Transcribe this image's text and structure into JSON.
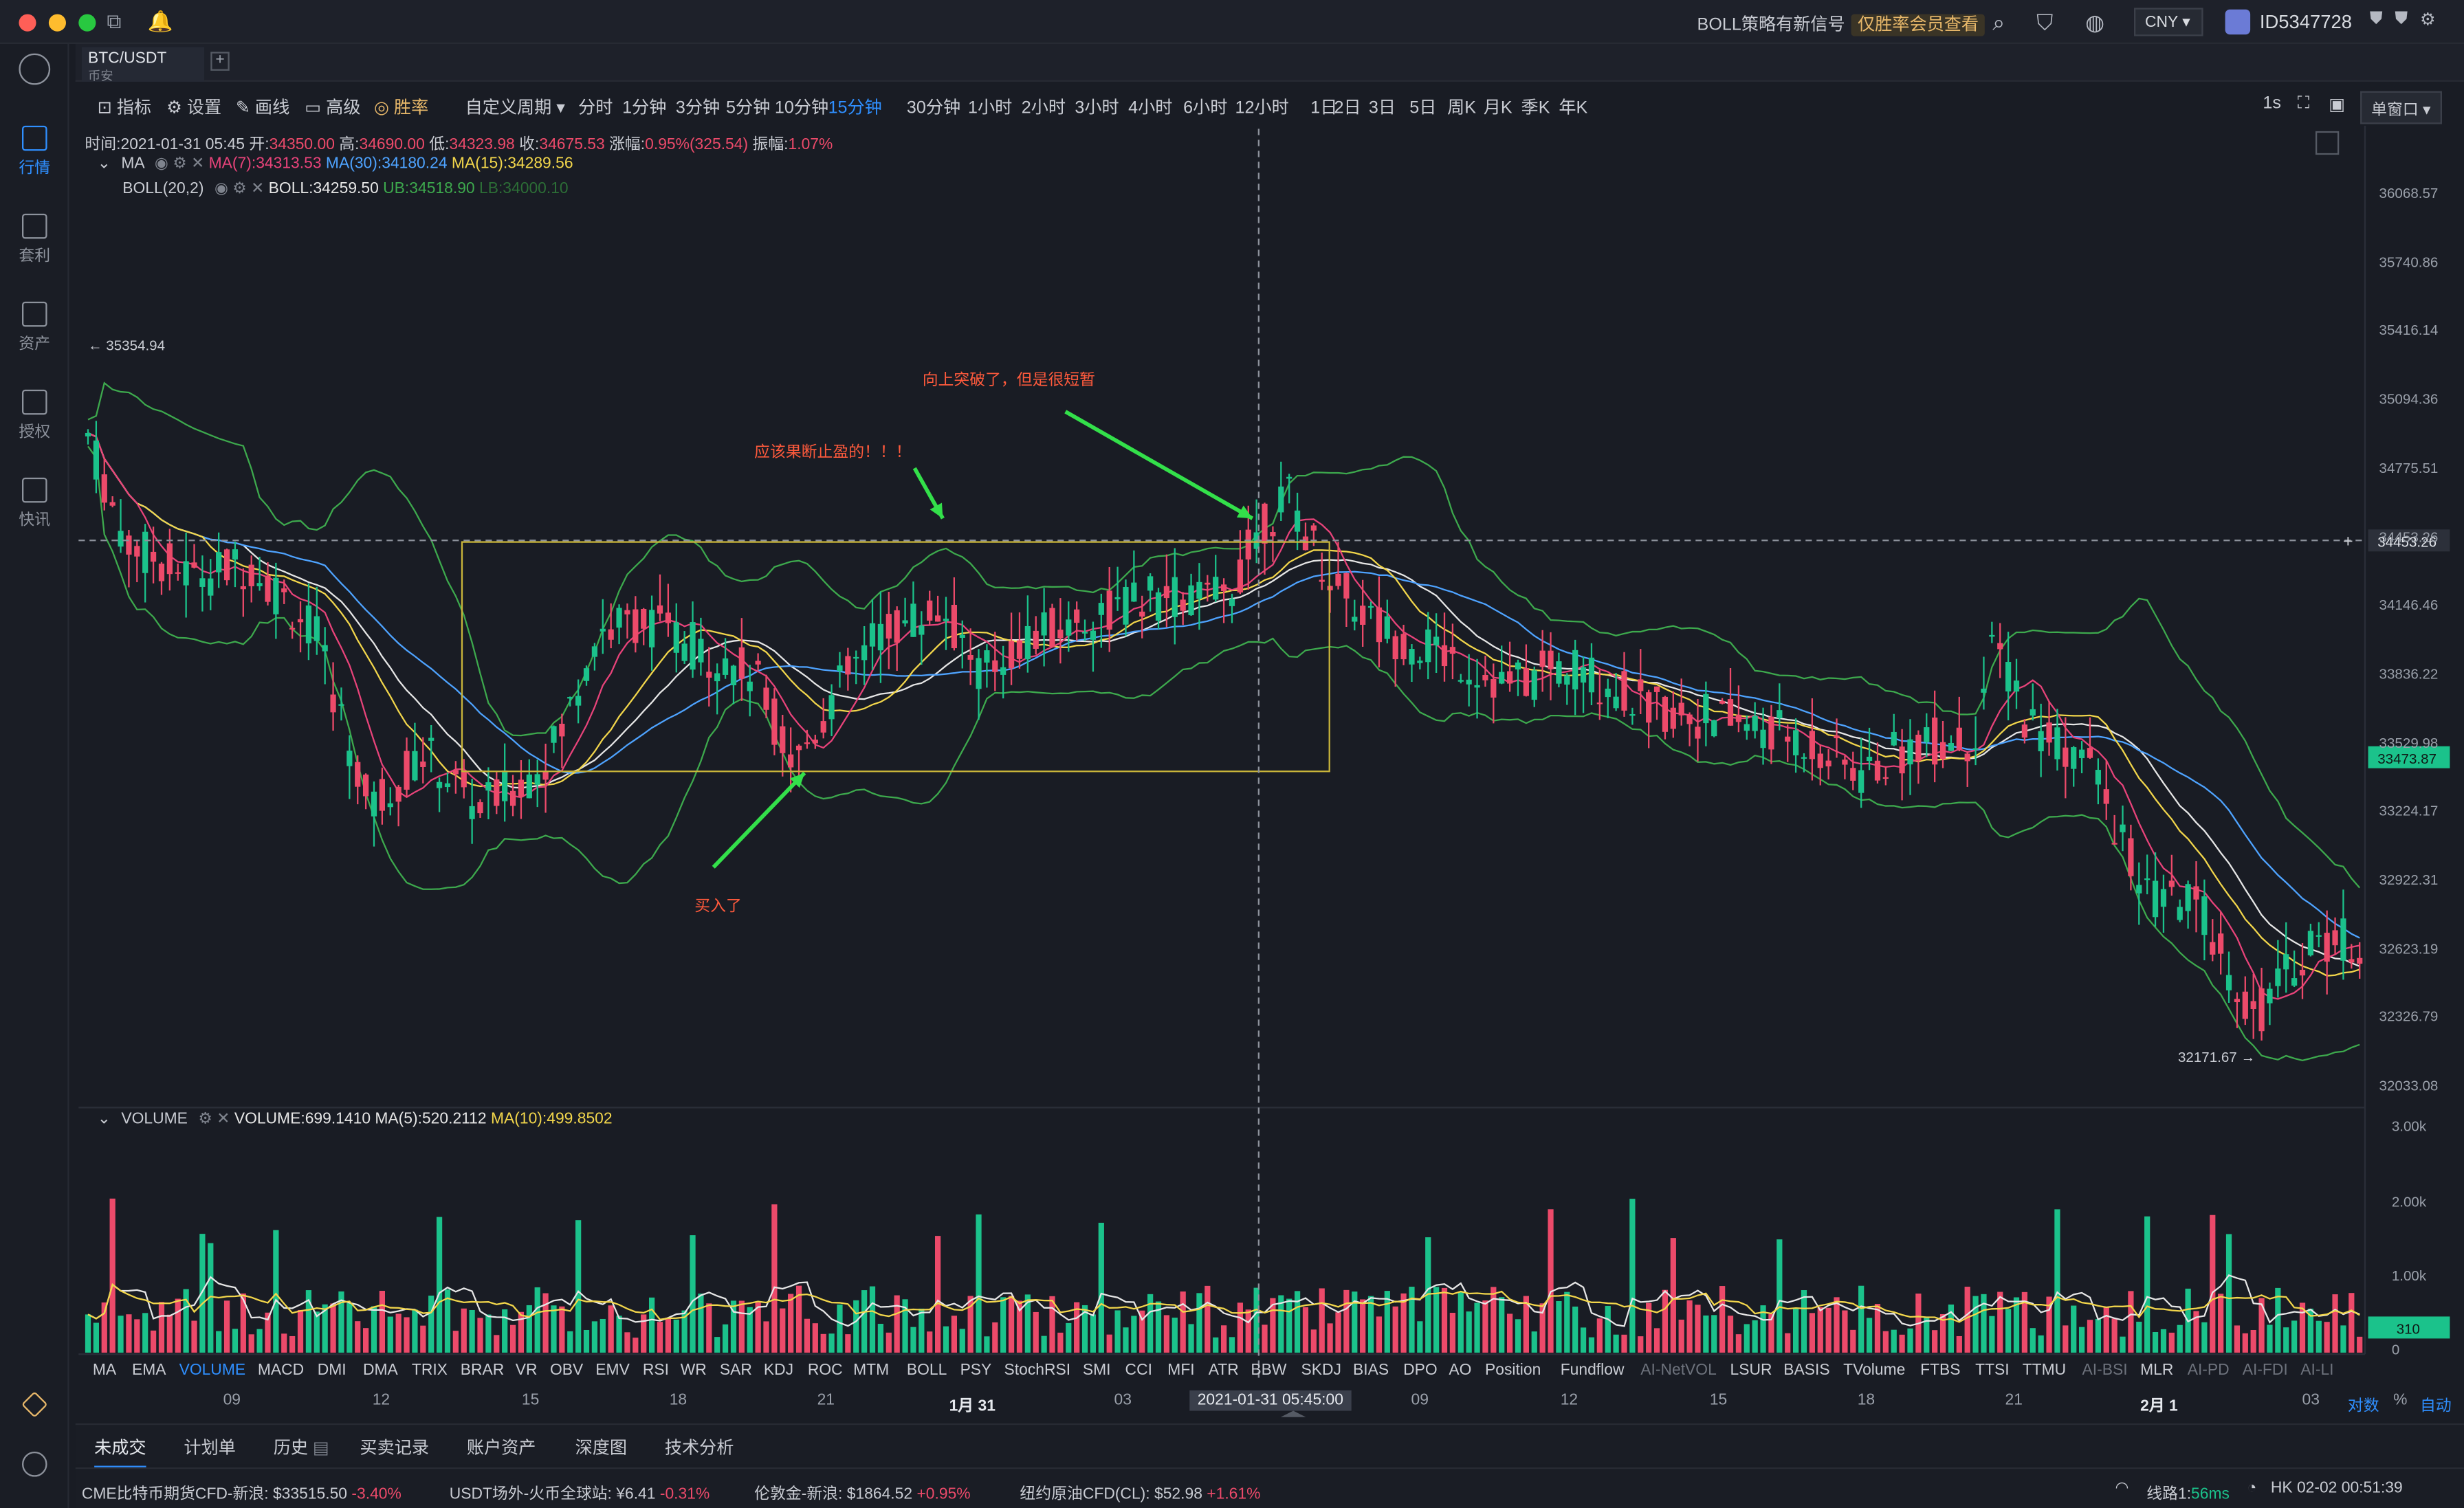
{
  "titlebar": {
    "signal_text": "BOLL策略有新信号",
    "signal_badge": "仅胜率会员查看",
    "currency": "CNY",
    "user_id": "ID5347728"
  },
  "sidebar": {
    "items": [
      {
        "label": "行情",
        "icon": "market-icon"
      },
      {
        "label": "套利",
        "icon": "arbitrage-icon"
      },
      {
        "label": "资产",
        "icon": "wallet-icon"
      },
      {
        "label": "授权",
        "icon": "key-icon"
      },
      {
        "label": "快讯",
        "icon": "news-icon"
      }
    ]
  },
  "symbol_tab": {
    "pair": "BTC/USDT",
    "exchange": "币安"
  },
  "toolbar": {
    "indicators": "指标",
    "settings": "设置",
    "draw": "画线",
    "advanced": "高级",
    "winrate": "胜率",
    "custom_period": "自定义周期",
    "periods": [
      "分时",
      "1分钟",
      "3分钟",
      "5分钟",
      "10分钟",
      "15分钟",
      "30分钟",
      "1小时",
      "2小时",
      "3小时",
      "4小时",
      "6小时",
      "12小时",
      "1日",
      "2日",
      "3日",
      "5日",
      "周K",
      "月K",
      "季K",
      "年K"
    ],
    "active_period": "15分钟",
    "refresh": "1s",
    "window_mode": "单窗口"
  },
  "ohlc": {
    "time_label": "时间:",
    "time": "2021-01-31 05:45",
    "open_label": "开:",
    "open": "34350.00",
    "high_label": "高:",
    "high": "34690.00",
    "low_label": "低:",
    "low": "34323.98",
    "close_label": "收:",
    "close": "34675.53",
    "change_label": "涨幅:",
    "change": "0.95%(325.54)",
    "amp_label": "振幅:",
    "amp": "1.07%"
  },
  "ma_line": {
    "name": "MA",
    "ma7": "MA(7):34313.53",
    "ma30": "MA(30):34180.24",
    "ma15": "MA(15):34289.56"
  },
  "boll_line": {
    "name": "BOLL(20,2)",
    "mid": "BOLL:34259.50",
    "ub": "UB:34518.90",
    "lb": "LB:34000.10"
  },
  "volume_line": {
    "name": "VOLUME",
    "vol": "VOLUME:699.1410",
    "ma5": "MA(5):520.2112",
    "ma10": "MA(10):499.8502"
  },
  "price_axis": [
    "36068.57",
    "35740.86",
    "35416.14",
    "35094.36",
    "34775.51",
    "34453.26",
    "34146.46",
    "33836.22",
    "33529.98",
    "33224.17",
    "32922.31",
    "32623.19",
    "32326.79",
    "32033.08"
  ],
  "current_price": "33473.87",
  "crosshair_price": "34453.26",
  "high_marker": "← 35354.94",
  "low_marker": "32171.67 →",
  "volume_axis": [
    "3.00k",
    "2.00k",
    "1.00k",
    "0"
  ],
  "current_volume": "310",
  "annotations": {
    "breakout": "向上突破了，但是很短暂",
    "take_profit": "应该果断止盈的！！！",
    "bought": "买入了"
  },
  "indicator_tabs": [
    "MA",
    "EMA",
    "VOLUME",
    "MACD",
    "DMI",
    "DMA",
    "TRIX",
    "BRAR",
    "VR",
    "OBV",
    "EMV",
    "RSI",
    "WR",
    "SAR",
    "KDJ",
    "ROC",
    "MTM",
    "BOLL",
    "PSY",
    "StochRSI",
    "SMI",
    "CCI",
    "MFI",
    "ATR",
    "BBW",
    "SKDJ",
    "BIAS",
    "DPO",
    "AO",
    "Position",
    "Fundflow",
    "AI-NetVOL",
    "LSUR",
    "BASIS",
    "TVolume",
    "FTBS",
    "TTSI",
    "TTMU",
    "AI-BSI",
    "MLR",
    "AI-PD",
    "AI-FDI",
    "AI-LI"
  ],
  "time_axis": [
    "09",
    "12",
    "15",
    "18",
    "21",
    "1月 31",
    "03",
    "2021-01-31 05:45:00",
    "09",
    "12",
    "15",
    "18",
    "21",
    "2月 1",
    "03"
  ],
  "axis_opts": {
    "log": "对数",
    "pct": "%",
    "auto": "自动"
  },
  "bottom_tabs": [
    "未成交",
    "计划单",
    "历史",
    "买卖记录",
    "账户资产",
    "深度图",
    "技术分析"
  ],
  "status": {
    "t1_name": "CME比特币期货CFD-新浪:",
    "t1_val": "$33515.50",
    "t1_chg": "-3.40%",
    "t2_name": "USDT场外-火币全球站:",
    "t2_val": "¥6.41",
    "t2_chg": "-0.31%",
    "t3_name": "伦敦金-新浪:",
    "t3_val": "$1864.52",
    "t3_chg": "+0.95%",
    "t4_name": "纽约原油CFD(CL):",
    "t4_val": "$52.98",
    "t4_chg": "+1.61%",
    "line": "线路1:",
    "latency": "56ms",
    "clock": "HK 02-02 00:51:39"
  },
  "colors": {
    "up": "#1bc28b",
    "down": "#ec4a6a",
    "accent": "#2f8fff",
    "boll": "#3da94d",
    "ma7": "#e8437a",
    "ma15": "#f2d64b",
    "ma30": "#4ea3ff"
  }
}
